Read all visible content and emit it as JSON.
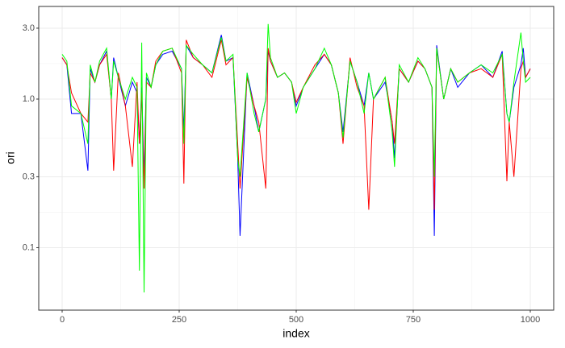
{
  "chart_data": {
    "type": "line",
    "x_label": "index",
    "y_label": "ori",
    "x": [
      0,
      10,
      20,
      40,
      55,
      60,
      70,
      80,
      95,
      105,
      110,
      120,
      135,
      150,
      160,
      165,
      170,
      175,
      180,
      190,
      200,
      215,
      235,
      255,
      260,
      265,
      280,
      300,
      320,
      340,
      350,
      365,
      375,
      380,
      395,
      410,
      420,
      435,
      440,
      445,
      460,
      475,
      490,
      500,
      515,
      540,
      560,
      575,
      590,
      600,
      615,
      630,
      645,
      655,
      665,
      690,
      705,
      710,
      720,
      740,
      760,
      775,
      790,
      795,
      800,
      815,
      830,
      845,
      870,
      895,
      920,
      940,
      950,
      955,
      965,
      980,
      985,
      990,
      1000
    ],
    "series": [
      {
        "color": "#0000ff",
        "values": [
          1.9,
          1.7,
          0.8,
          0.8,
          0.33,
          1.6,
          1.3,
          1.7,
          2.1,
          1.0,
          1.9,
          1.4,
          0.9,
          1.3,
          1.1,
          0.5,
          1.2,
          0.3,
          1.4,
          1.2,
          1.7,
          2.0,
          2.1,
          1.6,
          0.6,
          2.3,
          1.9,
          1.7,
          1.5,
          2.7,
          1.8,
          1.9,
          0.4,
          0.12,
          1.5,
          0.9,
          0.6,
          1.0,
          2.1,
          1.8,
          1.4,
          1.5,
          1.3,
          0.9,
          1.2,
          1.6,
          2.0,
          1.7,
          1.1,
          0.6,
          1.8,
          1.3,
          0.9,
          1.5,
          1.0,
          1.3,
          0.7,
          0.4,
          1.6,
          1.3,
          1.8,
          1.6,
          1.2,
          0.12,
          2.3,
          1.0,
          1.6,
          1.2,
          1.5,
          1.7,
          1.4,
          2.1,
          0.8,
          0.7,
          1.2,
          1.7,
          2.2,
          1.4,
          1.6
        ]
      },
      {
        "color": "#ff0000",
        "values": [
          1.9,
          1.7,
          1.1,
          0.8,
          0.7,
          1.5,
          1.3,
          1.7,
          2.0,
          1.0,
          0.33,
          1.5,
          0.9,
          0.35,
          1.3,
          0.5,
          1.1,
          0.25,
          1.3,
          1.2,
          1.8,
          2.1,
          2.2,
          1.5,
          0.27,
          2.5,
          1.9,
          1.7,
          1.4,
          2.5,
          1.7,
          1.9,
          0.5,
          0.25,
          1.4,
          0.9,
          0.7,
          0.25,
          2.2,
          1.8,
          1.4,
          1.5,
          1.3,
          0.95,
          1.2,
          1.7,
          2.0,
          1.7,
          1.1,
          0.5,
          1.9,
          1.2,
          0.9,
          0.18,
          1.0,
          1.4,
          0.7,
          0.5,
          1.6,
          1.3,
          1.8,
          1.6,
          1.2,
          0.18,
          2.2,
          1.0,
          1.6,
          1.3,
          1.5,
          1.6,
          1.4,
          2.0,
          0.28,
          0.7,
          0.3,
          1.6,
          1.8,
          1.4,
          1.6
        ]
      },
      {
        "color": "#00ff00",
        "values": [
          2.0,
          1.8,
          0.9,
          0.8,
          0.5,
          1.7,
          1.3,
          1.8,
          2.2,
          1.0,
          1.8,
          1.4,
          1.0,
          1.4,
          1.2,
          0.07,
          2.4,
          0.05,
          1.5,
          1.2,
          1.7,
          2.1,
          2.2,
          1.6,
          0.5,
          2.3,
          2.0,
          1.7,
          1.5,
          2.6,
          1.8,
          2.0,
          0.4,
          0.3,
          1.5,
          0.8,
          0.6,
          1.0,
          3.2,
          1.9,
          1.4,
          1.5,
          1.3,
          0.8,
          1.2,
          1.6,
          2.2,
          1.7,
          1.1,
          0.55,
          1.8,
          1.3,
          0.8,
          1.5,
          1.0,
          1.4,
          0.6,
          0.35,
          1.7,
          1.3,
          1.9,
          1.6,
          1.2,
          0.3,
          2.2,
          1.0,
          1.6,
          1.3,
          1.5,
          1.7,
          1.5,
          2.0,
          0.8,
          0.7,
          1.3,
          2.8,
          1.8,
          1.3,
          1.4
        ]
      }
    ],
    "xlim": [
      -50,
      1050
    ],
    "xticks": [
      0,
      250,
      500,
      750,
      1000
    ],
    "ylim": [
      0.038,
      4.2
    ],
    "yticks": [
      {
        "value": 3,
        "label": "3.0"
      },
      {
        "value": 1,
        "label": "1.0"
      },
      {
        "value": 0.3,
        "label": "0.3"
      },
      {
        "value": 0.1,
        "label": "0.1"
      }
    ],
    "ylog": true,
    "grid": true
  }
}
